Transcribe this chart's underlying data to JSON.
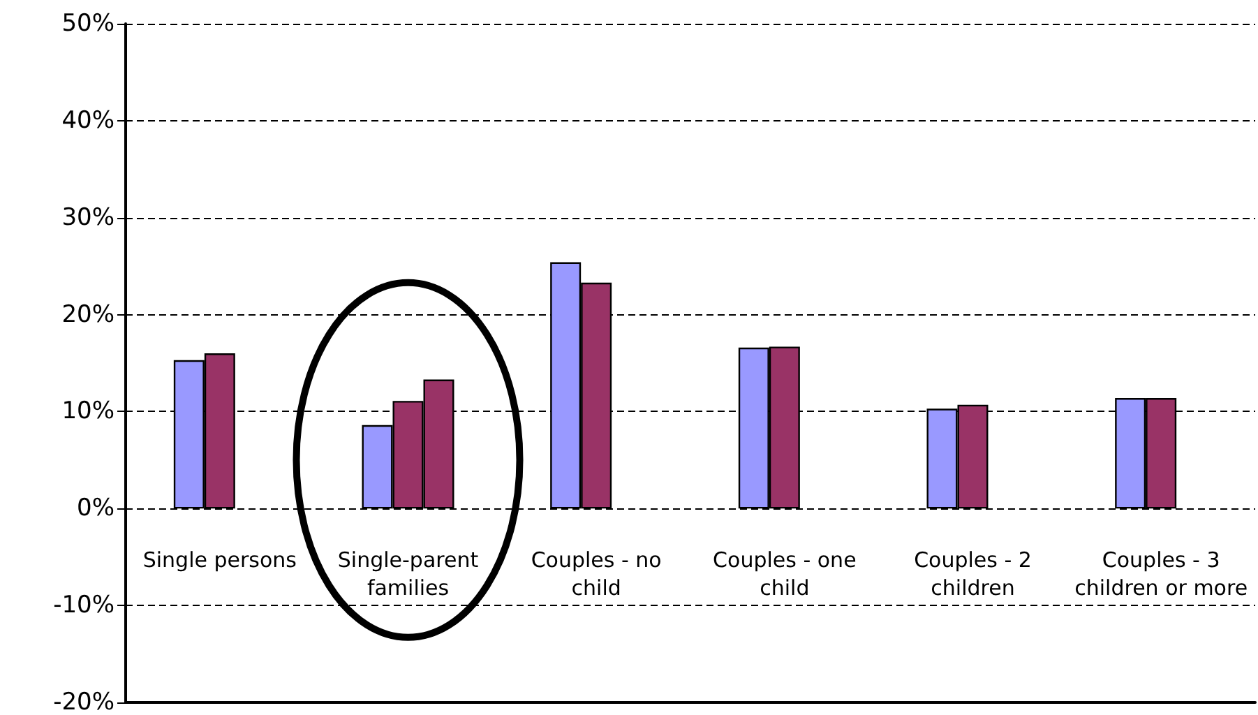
{
  "chart_data": {
    "type": "bar",
    "categories": [
      "Single persons",
      "Single-parent\nfamilies",
      "Couples - no\nchild",
      "Couples - one\nchild",
      "Couples - 2\nchildren",
      "Couples - 3\nchildren or more"
    ],
    "series": [
      {
        "color": "#9999ff",
        "values": [
          15.3,
          8.6,
          25.4,
          16.6,
          10.3,
          11.4
        ]
      },
      {
        "color": "#993366",
        "values": [
          16.0,
          11.1,
          23.3,
          16.7,
          10.7,
          11.4
        ]
      },
      {
        "color": "#993366",
        "values": [
          null,
          13.3,
          null,
          null,
          null,
          null
        ]
      }
    ],
    "ylim": [
      -20,
      50
    ],
    "yticks": [
      {
        "value": -20,
        "label": "-20%"
      },
      {
        "value": -10,
        "label": "-10%"
      },
      {
        "value": 0,
        "label": "0%"
      },
      {
        "value": 10,
        "label": "10%"
      },
      {
        "value": 20,
        "label": "20%"
      },
      {
        "value": 30,
        "label": "30%"
      },
      {
        "value": 40,
        "label": "40%"
      },
      {
        "value": 50,
        "label": "50%"
      }
    ],
    "grid": "y"
  }
}
